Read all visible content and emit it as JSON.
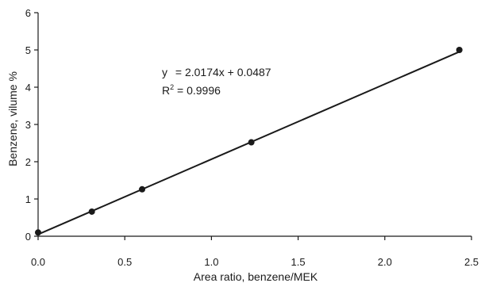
{
  "chart_data": {
    "type": "scatter",
    "title": "",
    "xlabel": "Area ratio, benzene/MEK",
    "ylabel": "Benzene, vilume %",
    "xlim": [
      0,
      2.5
    ],
    "ylim": [
      0,
      6
    ],
    "xticks": [
      0.0,
      0.5,
      1.0,
      1.5,
      2.0,
      2.5
    ],
    "xtick_labels": [
      "0.0",
      "0.5",
      "1.0",
      "1.5",
      "2.0",
      "2.5"
    ],
    "yticks": [
      0,
      1,
      2,
      3,
      4,
      5,
      6
    ],
    "ytick_labels": [
      "0",
      "1",
      "2",
      "3",
      "4",
      "5",
      "6"
    ],
    "grid": false,
    "legend": "none",
    "series": [
      {
        "points": [
          {
            "x": 0.0,
            "y": 0.1
          },
          {
            "x": 0.31,
            "y": 0.66
          },
          {
            "x": 0.6,
            "y": 1.26
          },
          {
            "x": 1.23,
            "y": 2.52
          },
          {
            "x": 2.43,
            "y": 5.0
          }
        ]
      }
    ],
    "trendline": {
      "slope": 2.0174,
      "intercept": 0.0487,
      "x_range": [
        0.0,
        2.43
      ]
    },
    "annotations": {
      "equation_prefix": "y",
      "equation_rest": " = 2.0174x + 0.0487",
      "r2_prefix": "R",
      "r2_sup": "2",
      "r2_rest": " = 0.9996"
    },
    "colors": {
      "line": "#1a1a1a",
      "marker": "#1a1a1a"
    }
  }
}
